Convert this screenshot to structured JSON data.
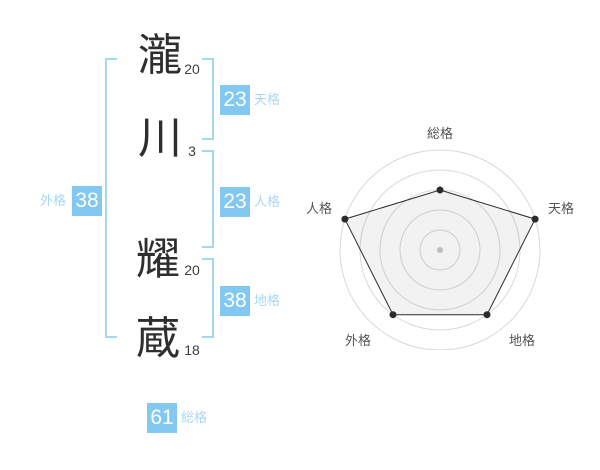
{
  "name_display": {
    "characters": [
      {
        "char": "瀧",
        "strokes": "20"
      },
      {
        "char": "川",
        "strokes": "3"
      },
      {
        "char": "耀",
        "strokes": "20"
      },
      {
        "char": "蔵",
        "strokes": "18"
      }
    ]
  },
  "kaku_badges": {
    "tenkaku": {
      "label": "天格",
      "value": "23"
    },
    "jinkaku": {
      "label": "人格",
      "value": "23"
    },
    "chikaku": {
      "label": "地格",
      "value": "38"
    },
    "gaikaku": {
      "label": "外格",
      "value": "38"
    },
    "soukaku": {
      "label": "総格",
      "value": "61"
    }
  },
  "colors": {
    "badge_bg": "#82C8F0",
    "badge_text": "#FFFFFF",
    "label_blue": "#A9D7F3",
    "bracket_blue": "#A5D6F2",
    "name_text": "#2E2E2E",
    "stroke_text": "#3F3F3F",
    "chart_grid": "#D9D9D9",
    "chart_line": "#2B2B2B",
    "chart_fill": "rgba(0,0,0,0.05)",
    "chart_label": "#555555",
    "chart_center_dot": "#C6C6C6"
  },
  "chart_data": {
    "type": "radar",
    "categories": [
      "総格",
      "天格",
      "地格",
      "外格",
      "人格"
    ],
    "values": [
      60,
      100,
      80,
      80,
      100
    ],
    "max": 100,
    "rings": 5,
    "start_angle_deg": -90,
    "direction": "clockwise",
    "grid": "concentric-circles-only",
    "legend": false,
    "title": ""
  }
}
